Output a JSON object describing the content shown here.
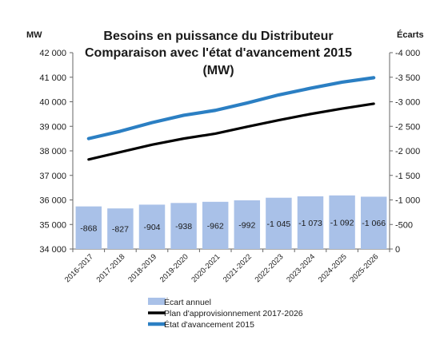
{
  "chart_data": {
    "type": "bar+line",
    "title_lines": [
      "Besoins en puissance du Distributeur",
      "Comparaison avec l'état d'avancement 2015",
      "(MW)"
    ],
    "left_axis_unit": "MW",
    "right_axis_unit": "Écarts",
    "categories": [
      "2016-2017",
      "2017-2018",
      "2018-2019",
      "2019-2020",
      "2020-2021",
      "2021-2022",
      "2022-2023",
      "2023-2024",
      "2024-2025",
      "2025-2026"
    ],
    "left_ylim": [
      34000,
      42000
    ],
    "left_ticks": [
      34000,
      35000,
      36000,
      37000,
      38000,
      39000,
      40000,
      41000,
      42000
    ],
    "left_tick_labels": [
      "34 000",
      "35 000",
      "36 000",
      "37 000",
      "38 000",
      "39 000",
      "40 000",
      "41 000",
      "42 000"
    ],
    "right_ylim": [
      0,
      -4000
    ],
    "right_ticks": [
      0,
      -500,
      -1000,
      -1500,
      -2000,
      -2500,
      -3000,
      -3500,
      -4000
    ],
    "right_tick_labels": [
      "0",
      "-500",
      "-1 000",
      "-1 500",
      "-2 000",
      "-2 500",
      "-3 000",
      "-3 500",
      "-4 000"
    ],
    "series": [
      {
        "name": "Écart annuel",
        "kind": "bar",
        "axis": "right",
        "color": "#a9c1e8",
        "values": [
          -868,
          -827,
          -904,
          -938,
          -962,
          -992,
          -1045,
          -1073,
          -1092,
          -1066
        ],
        "labels": [
          "-868",
          "-827",
          "-904",
          "-938",
          "-962",
          "-992",
          "-1 045",
          "-1 073",
          "-1 092",
          "-1 066"
        ]
      },
      {
        "name": "Plan d'approvisionnement 2017-2026",
        "kind": "line",
        "axis": "left",
        "color": "#000000",
        "values": [
          37650,
          37950,
          38250,
          38500,
          38700,
          38980,
          39250,
          39500,
          39720,
          39920
        ]
      },
      {
        "name": "État d'avancement 2015",
        "kind": "line",
        "axis": "left",
        "color": "#2b7fc3",
        "values": [
          38500,
          38800,
          39150,
          39450,
          39650,
          39950,
          40280,
          40550,
          40800,
          40980
        ]
      }
    ],
    "legend_position": "bottom-left",
    "grid": false
  }
}
